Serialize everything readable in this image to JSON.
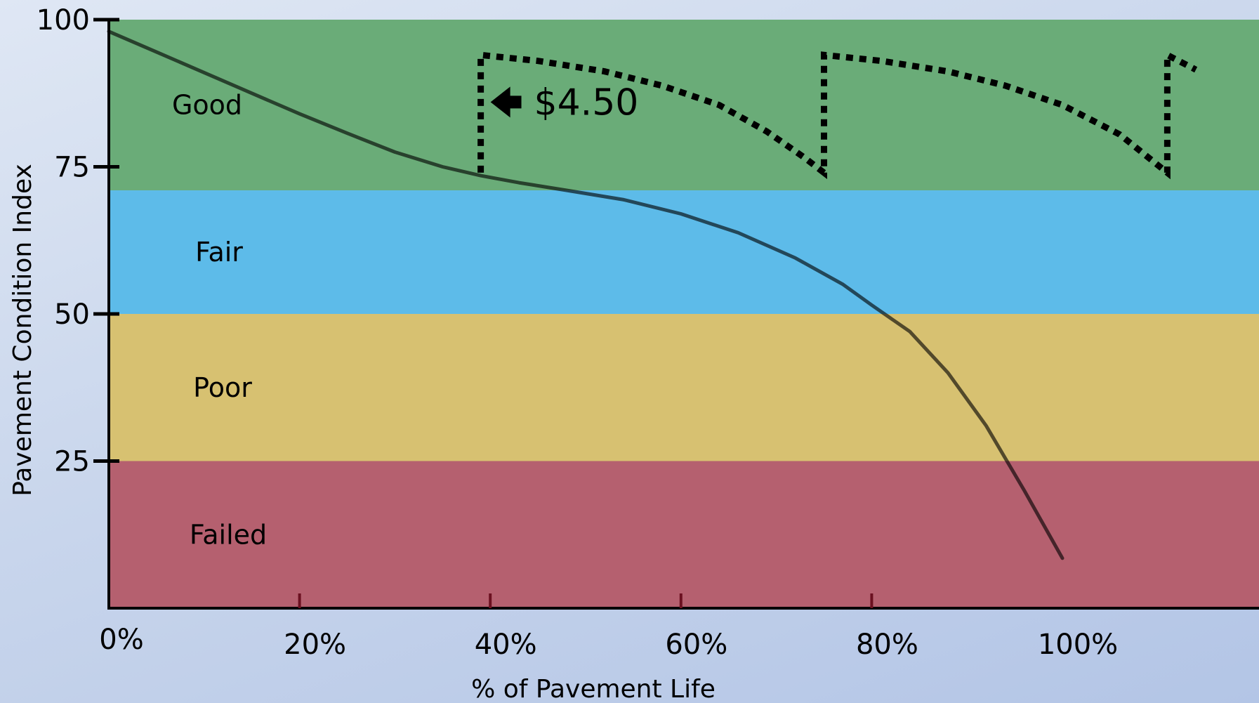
{
  "chart_data": {
    "type": "line",
    "title": "",
    "xlabel": "% of Pavement Life",
    "ylabel": "Pavement Condition Index",
    "xlim": [
      0,
      120
    ],
    "ylim": [
      0,
      100
    ],
    "x_ticks": [
      {
        "value": 0,
        "label": "0%"
      },
      {
        "value": 20,
        "label": "20%"
      },
      {
        "value": 40,
        "label": "40%"
      },
      {
        "value": 60,
        "label": "60%"
      },
      {
        "value": 80,
        "label": "80%"
      },
      {
        "value": 100,
        "label": "100%"
      }
    ],
    "y_ticks": [
      {
        "value": 100,
        "label": "100"
      },
      {
        "value": 75,
        "label": "75"
      },
      {
        "value": 50,
        "label": "50"
      },
      {
        "value": 25,
        "label": "25"
      }
    ],
    "bands": [
      {
        "label": "Good",
        "from": 71,
        "to": 100,
        "color": "#6aac78"
      },
      {
        "label": "Fair",
        "from": 50,
        "to": 71,
        "color": "#5dbbe9"
      },
      {
        "label": "Poor",
        "from": 25,
        "to": 50,
        "color": "#d7c171"
      },
      {
        "label": "Failed",
        "from": 0,
        "to": 25,
        "color": "#b5606f"
      }
    ],
    "series": [
      {
        "style": "solid",
        "x": [
          0,
          5,
          10,
          15,
          20,
          25,
          30,
          35,
          39,
          43,
          48,
          54,
          60,
          66,
          72,
          77,
          80,
          84,
          88,
          92,
          96,
          100
        ],
        "y": [
          98,
          94.5,
          91,
          87.5,
          84,
          80.7,
          77.5,
          75,
          73.5,
          72.3,
          71,
          69.4,
          67,
          63.8,
          59.5,
          55,
          51.5,
          47,
          40,
          31,
          20,
          8.5
        ]
      },
      {
        "style": "dotted",
        "x": [
          39,
          39,
          45,
          52,
          58,
          64,
          69,
          73,
          75,
          75,
          81,
          88,
          94,
          100,
          106,
          111,
          111,
          114
        ],
        "y": [
          74,
          94,
          93,
          91.2,
          88.8,
          85.5,
          81,
          76.5,
          74,
          94,
          93,
          91.2,
          88.8,
          85.5,
          80.5,
          74,
          94,
          91.5
        ]
      }
    ],
    "annotations": [
      {
        "text": "$4.50",
        "x": 44,
        "y": 86,
        "arrow": "left"
      }
    ]
  }
}
